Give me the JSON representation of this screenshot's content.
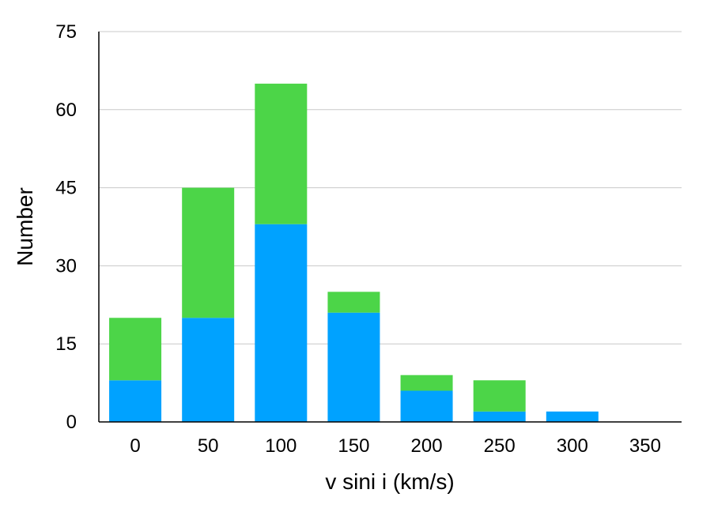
{
  "chart_data": {
    "type": "bar",
    "stacked": true,
    "title": "",
    "xlabel": "v sini i (km/s)",
    "ylabel": "Number",
    "categories": [
      "0",
      "50",
      "100",
      "150",
      "200",
      "250",
      "300",
      "350"
    ],
    "ylim": [
      0,
      75
    ],
    "yticks": [
      "0",
      "15",
      "30",
      "45",
      "60",
      "75"
    ],
    "grid": true,
    "legend": "none",
    "series": [
      {
        "color": "#00a2ff",
        "values": [
          8,
          20,
          38,
          21,
          6,
          2,
          2,
          0
        ]
      },
      {
        "color": "#4cd548",
        "values": [
          12,
          25,
          27,
          4,
          3,
          6,
          0,
          0
        ]
      }
    ]
  }
}
